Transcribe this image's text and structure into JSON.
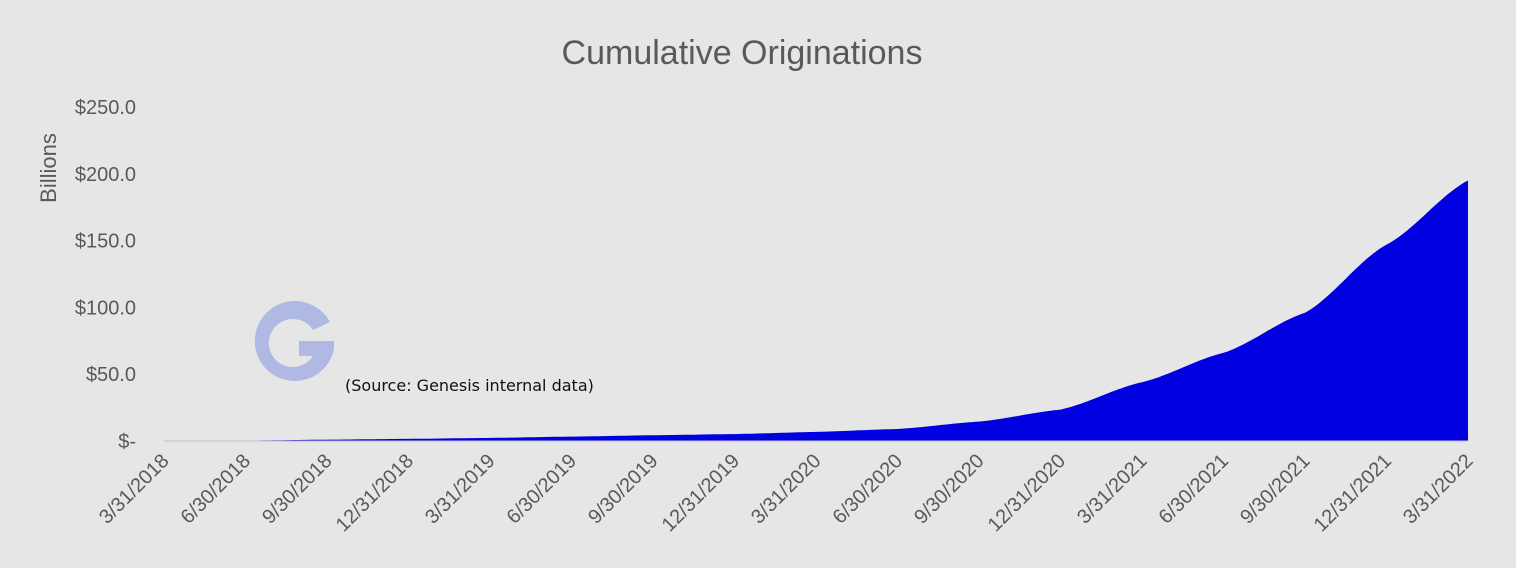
{
  "chart_data": {
    "type": "area",
    "title": "Cumulative Originations",
    "xlabel": "",
    "ylabel": "Billions",
    "x": [
      "3/31/2018",
      "6/30/2018",
      "9/30/2018",
      "12/31/2018",
      "3/31/2019",
      "6/30/2019",
      "9/30/2019",
      "12/31/2019",
      "3/31/2020",
      "6/30/2020",
      "9/30/2020",
      "12/31/2020",
      "3/31/2021",
      "6/30/2021",
      "9/30/2021",
      "12/31/2021",
      "3/31/2022"
    ],
    "series": [
      {
        "values": [
          0,
          0.3,
          1,
          1.6,
          2.3,
          3.3,
          4.3,
          5.2,
          6.8,
          9,
          14.5,
          23.5,
          44,
          66,
          96,
          147,
          195
        ]
      }
    ],
    "x_tick_labels": [
      "3/31/2018",
      "6/30/2018",
      "9/30/2018",
      "12/31/2018",
      "3/31/2019",
      "6/30/2019",
      "9/30/2019",
      "12/31/2019",
      "3/31/2020",
      "6/30/2020",
      "9/30/2020",
      "12/31/2020",
      "3/31/2021",
      "6/30/2021",
      "9/30/2021",
      "12/31/2021",
      "3/31/2022"
    ],
    "y_ticks": [
      0,
      50,
      100,
      150,
      200,
      250
    ],
    "y_tick_labels": [
      "$-",
      "$50.0",
      "$100.0",
      "$150.0",
      "$200.0",
      "$250.0"
    ],
    "ylim": [
      0,
      250
    ],
    "grid": false,
    "legend": "none",
    "annotations": [
      "(Source: Genesis internal data)"
    ],
    "colors": {
      "fill": "#0000e0",
      "logo": "#b0b8e4",
      "background": "#e6e6e6",
      "text": "#595959"
    }
  },
  "logo": {
    "name": "genesis-logo",
    "glyph": "G"
  }
}
